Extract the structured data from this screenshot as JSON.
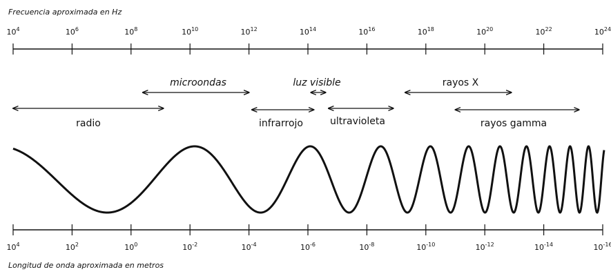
{
  "frequency_axis": {
    "title": "Frecuencia aproximada en Hz",
    "ticks": [
      {
        "base": "10",
        "exp": "4"
      },
      {
        "base": "10",
        "exp": "6"
      },
      {
        "base": "10",
        "exp": "8"
      },
      {
        "base": "10",
        "exp": "10"
      },
      {
        "base": "10",
        "exp": "12"
      },
      {
        "base": "10",
        "exp": "14"
      },
      {
        "base": "10",
        "exp": "16"
      },
      {
        "base": "10",
        "exp": "18"
      },
      {
        "base": "10",
        "exp": "20"
      },
      {
        "base": "10",
        "exp": "22"
      },
      {
        "base": "10",
        "exp": "24"
      }
    ]
  },
  "wavelength_axis": {
    "title": "Longitud de onda aproximada en metros",
    "ticks": [
      {
        "base": "10",
        "exp": "4"
      },
      {
        "base": "10",
        "exp": "2"
      },
      {
        "base": "10",
        "exp": "0"
      },
      {
        "base": "10",
        "exp": "-2"
      },
      {
        "base": "10",
        "exp": "-4"
      },
      {
        "base": "10",
        "exp": "-6"
      },
      {
        "base": "10",
        "exp": "-8"
      },
      {
        "base": "10",
        "exp": "-10"
      },
      {
        "base": "10",
        "exp": "-12"
      },
      {
        "base": "10",
        "exp": "-14"
      },
      {
        "base": "10",
        "exp": "-16"
      }
    ]
  },
  "bands": {
    "radio": {
      "label": "radio",
      "from_exp": 4,
      "to_exp": 9.1
    },
    "microondas": {
      "label": "microondas",
      "from_exp": 8.4,
      "to_exp": 12
    },
    "infrarrojo": {
      "label": "infrarrojo",
      "from_exp": 12.1,
      "to_exp": 14.2
    },
    "luz_visible": {
      "label": "luz visible",
      "from_exp": 14.1,
      "to_exp": 14.6
    },
    "ultravioleta": {
      "label": "ultravioleta",
      "from_exp": 14.7,
      "to_exp": 16.9
    },
    "rayos_x": {
      "label": "rayos X",
      "from_exp": 17.3,
      "to_exp": 20.9
    },
    "rayos_gamma": {
      "label": "rayos gamma",
      "from_exp": 19.0,
      "to_exp": 23.2
    }
  },
  "colors": {
    "ink": "#111111",
    "background": "#ffffff"
  }
}
